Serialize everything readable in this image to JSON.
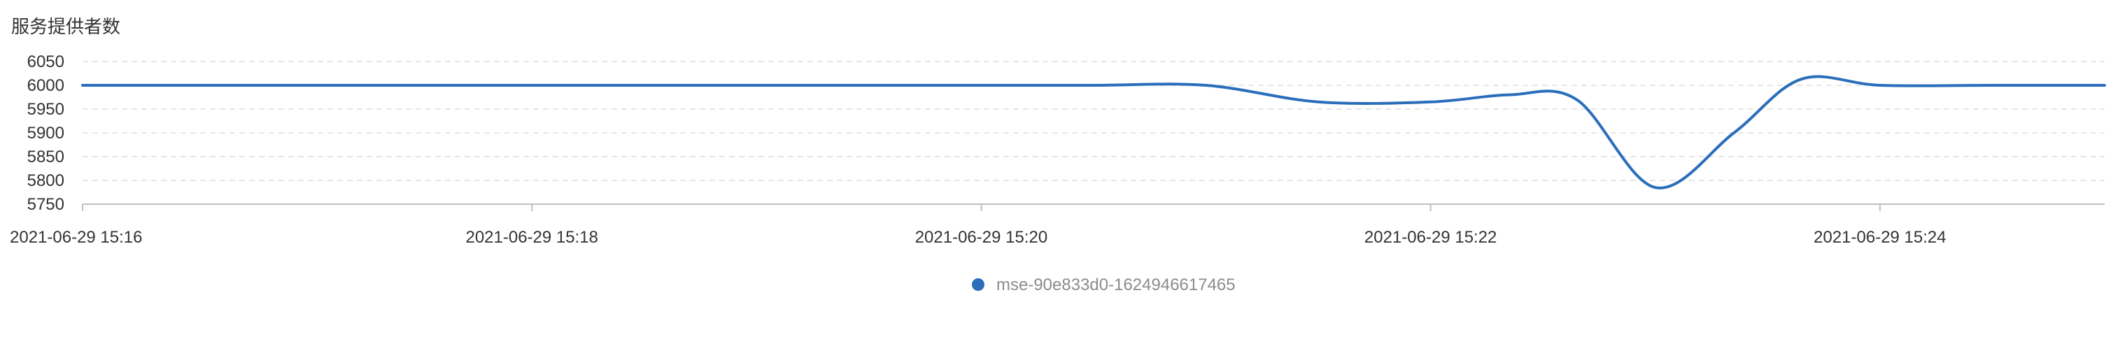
{
  "chart_data": {
    "type": "line",
    "title": "服务提供者数",
    "xlabel": "",
    "ylabel": "",
    "ylim": [
      5750,
      6050
    ],
    "yticks": [
      5750,
      5800,
      5850,
      5900,
      5950,
      6000,
      6050
    ],
    "xlim": [
      0,
      9
    ],
    "xticks": [
      {
        "x": 0,
        "label": "2021-06-29 15:16"
      },
      {
        "x": 2,
        "label": "2021-06-29 15:18"
      },
      {
        "x": 4,
        "label": "2021-06-29 15:20"
      },
      {
        "x": 6,
        "label": "2021-06-29 15:22"
      },
      {
        "x": 8,
        "label": "2021-06-29 15:24"
      }
    ],
    "grid": true,
    "legend_position": "bottom-center",
    "series": [
      {
        "name": "mse-90e833d0-1624946617465",
        "color": "#2a6ebb",
        "x": [
          0,
          0.5,
          1,
          1.5,
          2,
          2.5,
          3,
          3.5,
          4,
          4.5,
          5,
          5.5,
          6,
          6.35,
          6.65,
          7,
          7.35,
          7.65,
          8,
          8.5,
          9
        ],
        "values": [
          6000,
          6000,
          6000,
          6000,
          6000,
          6000,
          6000,
          6000,
          6000,
          6000,
          6000,
          5965,
          5965,
          5980,
          5970,
          5785,
          5900,
          6013,
          6000,
          6000,
          6000
        ]
      }
    ]
  }
}
